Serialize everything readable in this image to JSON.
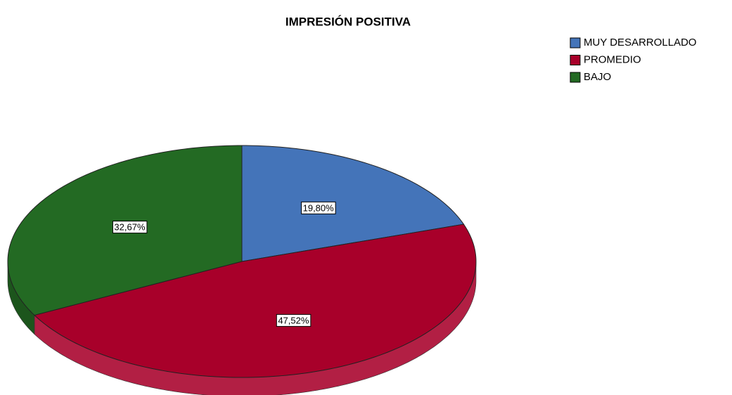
{
  "chart_data": {
    "type": "pie",
    "title": "IMPRESIÓN POSITIVA",
    "categories": [
      "MUY DESARROLLADO",
      "PROMEDIO",
      "BAJO"
    ],
    "values": [
      19.8,
      47.52,
      32.67
    ],
    "value_labels": [
      "19,80%",
      "47,52%",
      "32,67%"
    ],
    "colors": [
      "#4474b9",
      "#a8002a",
      "#236a23"
    ],
    "legend": "top-right"
  }
}
